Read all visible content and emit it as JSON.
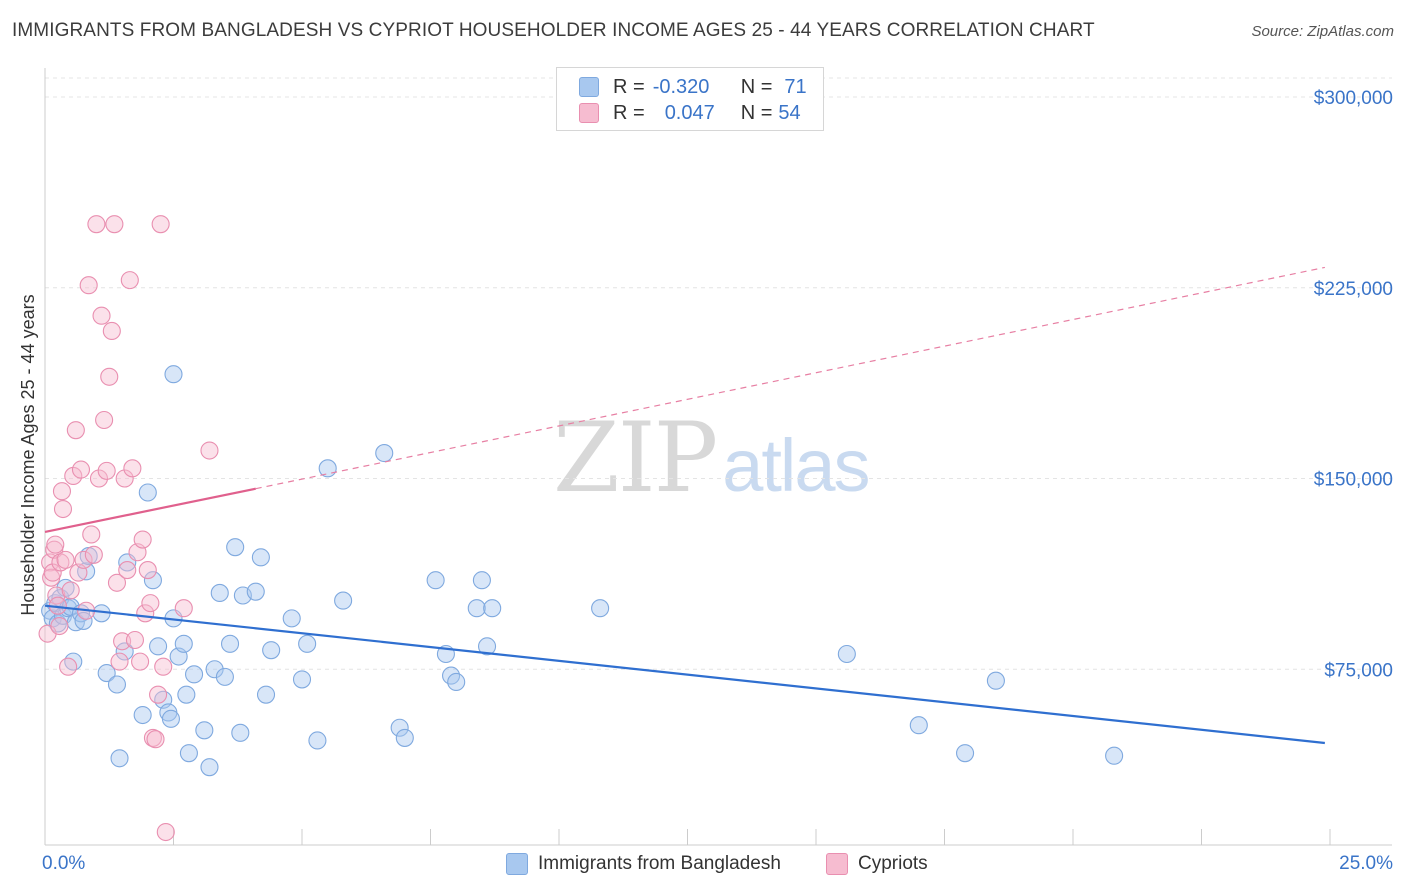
{
  "title": "IMMIGRANTS FROM BANGLADESH VS CYPRIOT HOUSEHOLDER INCOME AGES 25 - 44 YEARS CORRELATION CHART",
  "source": "Source: ZipAtlas.com",
  "watermark": {
    "zip": "ZIP",
    "atlas": "atlas"
  },
  "legend_top": {
    "rows": [
      {
        "r_label": "R =",
        "r_value": "-0.320",
        "n_label": "N =",
        "n_value": "71",
        "color": "#a8c8ef",
        "border": "#7fa9df"
      },
      {
        "r_label": "R =",
        "r_value": "0.047",
        "n_label": "N =",
        "n_value": "54",
        "color": "#f6bcd0",
        "border": "#e98fb0"
      }
    ]
  },
  "legend_bottom": [
    {
      "label": "Immigrants from Bangladesh",
      "color": "#a8c8ef",
      "border": "#7fa9df"
    },
    {
      "label": "Cypriots",
      "color": "#f6bcd0",
      "border": "#e98fb0"
    }
  ],
  "chart_data": {
    "type": "scatter",
    "title": "IMMIGRANTS FROM BANGLADESH VS CYPRIOT HOUSEHOLDER INCOME AGES 25 - 44 YEARS CORRELATION CHART",
    "xlabel": "",
    "ylabel": "Householder Income Ages 25 - 44 years",
    "xlim": [
      0,
      25
    ],
    "ylim": [
      0,
      310000
    ],
    "x_tick_labels": [
      "0.0%",
      "25.0%"
    ],
    "y_ticks": [
      75000,
      150000,
      225000,
      300000
    ],
    "y_tick_labels": [
      "$75,000",
      "$150,000",
      "$225,000",
      "$300,000"
    ],
    "grid": true,
    "legend_position": "top-center",
    "series": [
      {
        "name": "Immigrants from Bangladesh",
        "color": "#7fa9df",
        "fill": "#a8c8ef",
        "trend": {
          "x": [
            0,
            24.9
          ],
          "y": [
            100000,
            46000
          ],
          "dashed_extension": false
        },
        "points": [
          [
            0.1,
            98000
          ],
          [
            0.15,
            95000
          ],
          [
            0.2,
            101000
          ],
          [
            0.25,
            93000
          ],
          [
            0.3,
            103000
          ],
          [
            0.35,
            96000
          ],
          [
            0.4,
            107000
          ],
          [
            0.45,
            99000
          ],
          [
            0.5,
            99500
          ],
          [
            0.55,
            78000
          ],
          [
            0.6,
            93500
          ],
          [
            0.7,
            97000
          ],
          [
            0.75,
            94000
          ],
          [
            0.8,
            113500
          ],
          [
            0.85,
            119500
          ],
          [
            1.1,
            97000
          ],
          [
            1.2,
            73500
          ],
          [
            1.4,
            69000
          ],
          [
            1.45,
            40000
          ],
          [
            1.55,
            82000
          ],
          [
            1.6,
            117000
          ],
          [
            1.9,
            57000
          ],
          [
            2.0,
            144500
          ],
          [
            2.1,
            110000
          ],
          [
            2.2,
            84000
          ],
          [
            2.3,
            63000
          ],
          [
            2.4,
            58000
          ],
          [
            2.45,
            55500
          ],
          [
            2.5,
            95000
          ],
          [
            2.6,
            80000
          ],
          [
            2.7,
            85000
          ],
          [
            2.75,
            65000
          ],
          [
            2.8,
            42000
          ],
          [
            2.9,
            73000
          ],
          [
            3.1,
            51000
          ],
          [
            3.2,
            36500
          ],
          [
            3.3,
            75000
          ],
          [
            3.4,
            105000
          ],
          [
            3.5,
            72000
          ],
          [
            3.6,
            85000
          ],
          [
            3.7,
            123000
          ],
          [
            3.8,
            50000
          ],
          [
            3.85,
            104000
          ],
          [
            4.1,
            105500
          ],
          [
            4.2,
            119000
          ],
          [
            4.3,
            65000
          ],
          [
            4.4,
            82500
          ],
          [
            4.8,
            95000
          ],
          [
            5.0,
            71000
          ],
          [
            5.1,
            85000
          ],
          [
            5.3,
            47000
          ],
          [
            5.5,
            154000
          ],
          [
            5.8,
            102000
          ],
          [
            6.6,
            160000
          ],
          [
            6.9,
            52000
          ],
          [
            7.0,
            48000
          ],
          [
            7.6,
            110000
          ],
          [
            7.8,
            81000
          ],
          [
            7.9,
            72500
          ],
          [
            8.0,
            70000
          ],
          [
            8.4,
            99000
          ],
          [
            8.5,
            110000
          ],
          [
            8.6,
            84000
          ],
          [
            8.7,
            99000
          ],
          [
            10.8,
            99000
          ],
          [
            15.6,
            81000
          ],
          [
            17.0,
            53000
          ],
          [
            17.9,
            42000
          ],
          [
            18.5,
            70500
          ],
          [
            20.8,
            41000
          ],
          [
            2.5,
            191000
          ]
        ]
      },
      {
        "name": "Cypriots",
        "color": "#e98fb0",
        "fill": "#f6bcd0",
        "trend": {
          "x": [
            0,
            4.1
          ],
          "y": [
            129000,
            146000
          ],
          "dashed_to": [
            24.9,
            233000
          ]
        },
        "points": [
          [
            0.05,
            89000
          ],
          [
            0.1,
            117000
          ],
          [
            0.12,
            111000
          ],
          [
            0.15,
            113000
          ],
          [
            0.18,
            122000
          ],
          [
            0.2,
            124000
          ],
          [
            0.22,
            104000
          ],
          [
            0.25,
            100000
          ],
          [
            0.28,
            92000
          ],
          [
            0.3,
            117000
          ],
          [
            0.33,
            145000
          ],
          [
            0.35,
            138000
          ],
          [
            0.4,
            118000
          ],
          [
            0.45,
            76000
          ],
          [
            0.5,
            106000
          ],
          [
            0.55,
            151000
          ],
          [
            0.6,
            169000
          ],
          [
            0.65,
            113000
          ],
          [
            0.7,
            153500
          ],
          [
            0.75,
            118000
          ],
          [
            0.8,
            98000
          ],
          [
            0.85,
            226000
          ],
          [
            0.9,
            128000
          ],
          [
            0.95,
            120000
          ],
          [
            1.0,
            250000
          ],
          [
            1.05,
            150000
          ],
          [
            1.1,
            214000
          ],
          [
            1.15,
            173000
          ],
          [
            1.2,
            153000
          ],
          [
            1.25,
            190000
          ],
          [
            1.3,
            208000
          ],
          [
            1.35,
            250000
          ],
          [
            1.4,
            109000
          ],
          [
            1.45,
            78000
          ],
          [
            1.5,
            86000
          ],
          [
            1.55,
            150000
          ],
          [
            1.6,
            114000
          ],
          [
            1.65,
            228000
          ],
          [
            1.7,
            154000
          ],
          [
            1.75,
            86500
          ],
          [
            1.8,
            121000
          ],
          [
            1.85,
            78000
          ],
          [
            1.9,
            126000
          ],
          [
            1.95,
            97000
          ],
          [
            2.0,
            114000
          ],
          [
            2.05,
            101000
          ],
          [
            2.1,
            48000
          ],
          [
            2.15,
            47500
          ],
          [
            2.2,
            65000
          ],
          [
            2.25,
            250000
          ],
          [
            2.3,
            76000
          ],
          [
            2.35,
            11000
          ],
          [
            2.7,
            99000
          ],
          [
            3.2,
            161000
          ]
        ]
      }
    ]
  }
}
